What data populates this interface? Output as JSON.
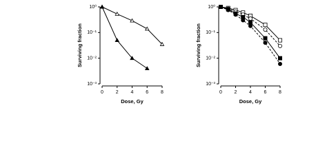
{
  "chart_data": [
    {
      "type": "line",
      "xlabel": "Dose, Gy",
      "ylabel": "Surviving fraction",
      "log_y": true,
      "xlim": [
        0,
        8
      ],
      "xticks": [
        0,
        2,
        4,
        6,
        8
      ],
      "ylim": [
        0.001,
        1
      ],
      "yticks": [
        {
          "value": 0.001,
          "label": "10⁻³"
        },
        {
          "value": 0.01,
          "label": "10⁻²"
        },
        {
          "value": 0.1,
          "label": "10⁻¹"
        },
        {
          "value": 1,
          "label": "10⁰"
        }
      ],
      "x": [
        0,
        2,
        4,
        6,
        8
      ],
      "series": [
        {
          "color": "#000000",
          "marker": "triangle-open",
          "values": [
            1,
            0.53,
            0.29,
            0.14,
            0.035
          ]
        },
        {
          "color": "#000000",
          "marker": "triangle-filled",
          "values": [
            1,
            0.05,
            0.01,
            0.004,
            null
          ]
        }
      ]
    },
    {
      "type": "line",
      "xlabel": "Dose, Gy",
      "ylabel": "Surviving fraction",
      "log_y": true,
      "xlim": [
        0,
        8
      ],
      "xticks": [
        0,
        2,
        4,
        6,
        8
      ],
      "ylim": [
        0.001,
        1
      ],
      "yticks": [
        {
          "value": 0.001,
          "label": "10⁻³"
        },
        {
          "value": 0.01,
          "label": "10⁻²"
        },
        {
          "value": 0.1,
          "label": "10⁻¹"
        },
        {
          "value": 1,
          "label": "10⁰"
        }
      ],
      "x": [
        0,
        1,
        2,
        3,
        4,
        6,
        8
      ],
      "series": [
        {
          "color": "#000000",
          "marker": "square-open",
          "values": [
            1,
            0.9,
            0.75,
            0.6,
            0.45,
            0.2,
            0.05
          ]
        },
        {
          "color": "#000000",
          "marker": "circle-open",
          "values": [
            1,
            0.85,
            0.65,
            0.5,
            0.35,
            0.13,
            0.03
          ]
        },
        {
          "color": "#000000",
          "marker": "square-filled",
          "values": [
            1,
            0.8,
            0.55,
            0.4,
            0.25,
            0.06,
            0.01
          ]
        },
        {
          "color": "#000000",
          "marker": "circle-filled",
          "values": [
            1,
            0.75,
            0.5,
            0.3,
            0.18,
            0.04,
            0.006
          ]
        }
      ]
    }
  ]
}
